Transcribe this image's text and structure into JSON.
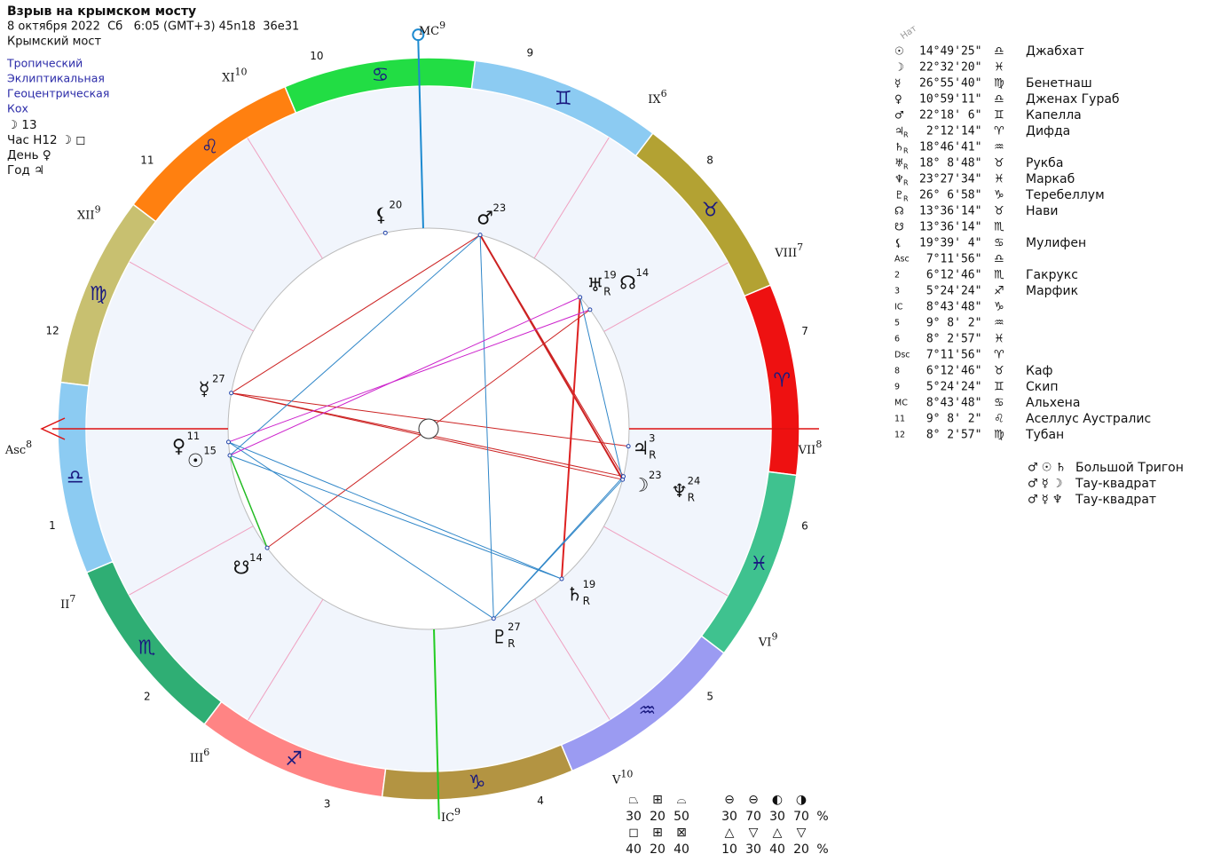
{
  "header": {
    "title": "Взрыв на крымском мосту",
    "date": "8 октября 2022  Сб   6:05 (GMT+3) 45n18  36e31",
    "place": "Крымский мост"
  },
  "settings": [
    "Тропический",
    "Эклиптикальная",
    "Геоцентрическая",
    "Кох"
  ],
  "info": [
    "☽ 13",
    "Час H12 ☽ ◻",
    "День ♀",
    "Год ♃"
  ],
  "wheel": {
    "signs": [
      {
        "glyph": "♈",
        "color": "#ee1111"
      },
      {
        "glyph": "♉",
        "color": "#b3a233"
      },
      {
        "glyph": "♊",
        "color": "#8ccbf2"
      },
      {
        "glyph": "♋",
        "color": "#22dd44"
      },
      {
        "glyph": "♌",
        "color": "#ff8010"
      },
      {
        "glyph": "♍",
        "color": "#c8c070"
      },
      {
        "glyph": "♎",
        "color": "#8ccbf2"
      },
      {
        "glyph": "♏",
        "color": "#2fae74"
      },
      {
        "glyph": "♐",
        "color": "#ff8484"
      },
      {
        "glyph": "♑",
        "color": "#b39442"
      },
      {
        "glyph": "♒",
        "color": "#9b9bf2"
      },
      {
        "glyph": "♓",
        "color": "#3fc28f"
      }
    ],
    "cusp_labels": [
      {
        "name": "Asc",
        "degree": "8"
      },
      {
        "name": "II",
        "degree": "7"
      },
      {
        "name": "III",
        "degree": "6"
      },
      {
        "name": "IC",
        "degree": "9"
      },
      {
        "name": "V",
        "degree": "10"
      },
      {
        "name": "VI",
        "degree": "9"
      },
      {
        "name": "VII",
        "degree": "8"
      },
      {
        "name": "VIII",
        "degree": "7"
      },
      {
        "name": "IX",
        "degree": "6"
      },
      {
        "name": "MC",
        "degree": "9"
      },
      {
        "name": "XI",
        "degree": "10"
      },
      {
        "name": "XII",
        "degree": "9"
      }
    ],
    "house_numbers": [
      "1",
      "2",
      "3",
      "4",
      "5",
      "6",
      "7",
      "8",
      "9",
      "10",
      "11",
      "12"
    ],
    "planets": [
      {
        "glyph": "☉",
        "degree": "15"
      },
      {
        "glyph": "☽",
        "degree": "23"
      },
      {
        "glyph": "☿",
        "degree": "27"
      },
      {
        "glyph": "♀",
        "degree": "11"
      },
      {
        "glyph": "♂",
        "degree": "23"
      },
      {
        "glyph": "♃",
        "degree": "3",
        "retro": "R"
      },
      {
        "glyph": "♄",
        "degree": "19",
        "retro": "R"
      },
      {
        "glyph": "♅",
        "degree": "19",
        "retro": "R"
      },
      {
        "glyph": "♆",
        "degree": "24",
        "retro": "R"
      },
      {
        "glyph": "♇",
        "degree": "27",
        "retro": "R"
      },
      {
        "glyph": "☊",
        "degree": "14"
      },
      {
        "glyph": "☋",
        "degree": "14"
      },
      {
        "glyph": "⚸",
        "degree": "20"
      }
    ]
  },
  "table": {
    "header": "Нат",
    "rows": [
      {
        "symbol": "☉",
        "position": "14°49'25\"",
        "sign": "♎",
        "star": "Джабхат"
      },
      {
        "symbol": "☽",
        "position": "22°32'20\"",
        "sign": "♓"
      },
      {
        "symbol": "☿",
        "position": "26°55'40\"",
        "sign": "♍",
        "star": "Бенетнаш"
      },
      {
        "symbol": "♀",
        "position": "10°59'11\"",
        "sign": "♎",
        "star": "Дженах Гураб"
      },
      {
        "symbol": "♂",
        "position": "22°18' 6\"",
        "sign": "♊",
        "star": "Капелла"
      },
      {
        "symbol": "♃",
        "retro": "R",
        "position": " 2°12'14\"",
        "sign": "♈",
        "star": "Дифда"
      },
      {
        "symbol": "♄",
        "retro": "R",
        "position": "18°46'41\"",
        "sign": "♒"
      },
      {
        "symbol": "♅",
        "retro": "R",
        "position": "18° 8'48\"",
        "sign": "♉",
        "star": "Рукба"
      },
      {
        "symbol": "♆",
        "retro": "R",
        "position": "23°27'34\"",
        "sign": "♓",
        "star": "Маркаб"
      },
      {
        "symbol": "♇",
        "retro": "R",
        "position": "26° 6'58\"",
        "sign": "♑",
        "star": "Теребеллум"
      },
      {
        "symbol": "☊",
        "position": "13°36'14\"",
        "sign": "♉",
        "star": "Нави"
      },
      {
        "symbol": "☋",
        "position": "13°36'14\"",
        "sign": "♏"
      },
      {
        "symbol": "⚸",
        "position": "19°39' 4\"",
        "sign": "♋",
        "star": "Мулифен"
      },
      {
        "symbol": "Asc",
        "position": " 7°11'56\"",
        "sign": "♎"
      },
      {
        "symbol": "2",
        "position": " 6°12'46\"",
        "sign": "♏",
        "star": "Гакрукс"
      },
      {
        "symbol": "3",
        "position": " 5°24'24\"",
        "sign": "♐",
        "star": "Марфик"
      },
      {
        "symbol": "IC",
        "position": " 8°43'48\"",
        "sign": "♑"
      },
      {
        "symbol": "5",
        "position": " 9° 8' 2\"",
        "sign": "♒"
      },
      {
        "symbol": "6",
        "position": " 8° 2'57\"",
        "sign": "♓"
      },
      {
        "symbol": "Dsc",
        "position": " 7°11'56\"",
        "sign": "♈"
      },
      {
        "symbol": "8",
        "position": " 6°12'46\"",
        "sign": "♉",
        "star": "Каф"
      },
      {
        "symbol": "9",
        "position": " 5°24'24\"",
        "sign": "♊",
        "star": "Скип"
      },
      {
        "symbol": "MC",
        "position": " 8°43'48\"",
        "sign": "♋",
        "star": "Альхена"
      },
      {
        "symbol": "11",
        "position": " 9° 8' 2\"",
        "sign": "♌",
        "star": "Аселлус Аустралис"
      },
      {
        "symbol": "12",
        "position": " 8° 2'57\"",
        "sign": "♍",
        "star": "Тубан"
      }
    ]
  },
  "aspects": [
    {
      "planets": "♂ ☉ ♄",
      "name": "Большой Тригон"
    },
    {
      "planets": "♂ ☿ ☽",
      "name": "Тау-квадрат"
    },
    {
      "planets": "♂ ☿ ♆",
      "name": "Тау-квадрат"
    }
  ],
  "stats": [
    {
      "icons": [
        "⏢",
        "⊞",
        "⌓"
      ],
      "values": [
        "30",
        "20",
        "50"
      ]
    },
    {
      "icons": [
        "⊖",
        "⊖",
        "◐",
        "◑"
      ],
      "values": [
        "30",
        "70",
        "30",
        "70"
      ],
      "unit": "%"
    },
    {
      "icons": [
        "◻",
        "⊞",
        "⊠"
      ],
      "values": [
        "40",
        "20",
        "40"
      ]
    },
    {
      "icons": [
        "△",
        "▽",
        "△",
        "▽"
      ],
      "values": [
        "10",
        "30",
        "40",
        "20"
      ],
      "unit": "%"
    }
  ]
}
